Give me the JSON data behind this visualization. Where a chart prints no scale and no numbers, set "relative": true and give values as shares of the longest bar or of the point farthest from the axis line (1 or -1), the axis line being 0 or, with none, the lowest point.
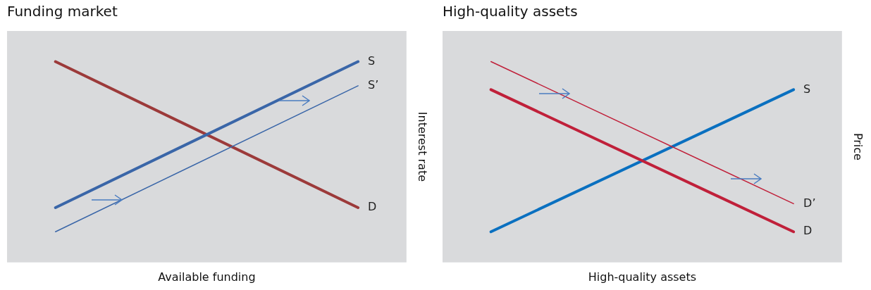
{
  "chart_data": [
    {
      "type": "line",
      "title": "Funding market",
      "xlabel": "Available funding",
      "ylabel": "Interest rate",
      "relative": true,
      "categories": [
        null,
        null
      ],
      "marker": "none",
      "legend": false,
      "grid": false,
      "series": [
        {
          "name": "S",
          "color": "#3a66a8",
          "values": [
            0.142,
            1
          ]
        },
        {
          "name": "S’",
          "color": "#3a66a8",
          "values": [
            0,
            0.858
          ]
        },
        {
          "name": "D",
          "color": "#9c3a3a",
          "values": [
            1,
            0.142
          ]
        }
      ]
    },
    {
      "type": "line",
      "title": "High-quality assets",
      "xlabel": "High-quality assets",
      "ylabel": "Price",
      "relative": true,
      "categories": [
        null,
        null
      ],
      "marker": "none",
      "legend": false,
      "grid": false,
      "series": [
        {
          "name": "D’",
          "color": "#c0203a",
          "values": [
            1,
            0.165
          ]
        },
        {
          "name": "D",
          "color": "#c0203a",
          "values": [
            0.835,
            0
          ]
        },
        {
          "name": "S",
          "color": "#0a70c0",
          "values": [
            0,
            0.835
          ]
        }
      ]
    }
  ]
}
